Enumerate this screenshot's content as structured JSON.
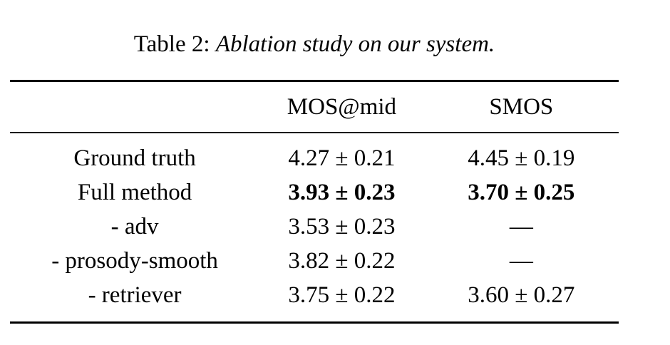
{
  "caption": {
    "prefix": "Table 2: ",
    "title": "Ablation study on our system."
  },
  "table": {
    "columns": [
      "",
      "MOS@mid",
      "SMOS"
    ],
    "rows": [
      {
        "label": "Ground truth",
        "mos": "4.27 ± 0.21",
        "smos": "4.45 ± 0.19",
        "bold": false
      },
      {
        "label": "Full method",
        "mos": "3.93 ± 0.23",
        "smos": "3.70 ± 0.25",
        "bold": true
      },
      {
        "label": "- adv",
        "mos": "3.53 ± 0.23",
        "smos": "—",
        "bold": false
      },
      {
        "label": "- prosody-smooth",
        "mos": "3.82 ± 0.22",
        "smos": "—",
        "bold": false
      },
      {
        "label": "- retriever",
        "mos": "3.75 ± 0.22",
        "smos": "3.60 ± 0.27",
        "bold": false
      }
    ]
  }
}
